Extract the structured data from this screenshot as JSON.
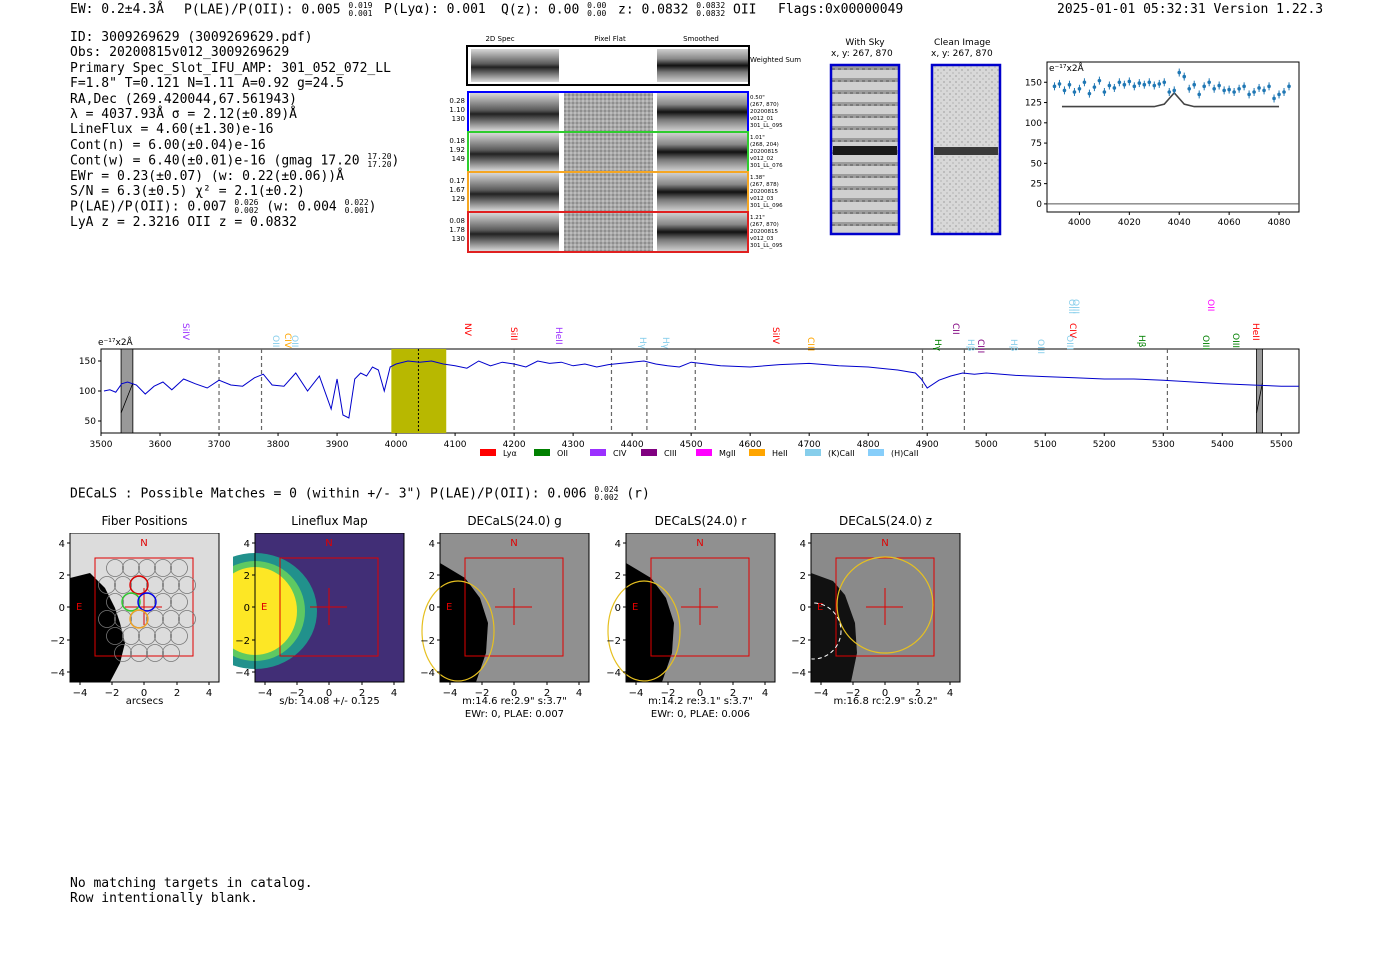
{
  "header": {
    "ew": "EW: 0.2±4.3Å",
    "plae_label": "P(LAE)/P(OII): 0.005",
    "plae_hi": "0.019",
    "plae_lo": "0.001",
    "plya": "P(Lyα): 0.001",
    "qz_label": "Q(z): 0.00",
    "qz_hi": "0.00",
    "qz_lo": "0.00",
    "z_label": "z: 0.0832",
    "z_hi": "0.0832",
    "z_lo": "0.0832",
    "z_line": "OII",
    "flags": "Flags:0x00000049",
    "timestamp": "2025-01-01 05:32:31",
    "version": "Version 1.22.3"
  },
  "info": {
    "id": "ID: 3009269629 (3009269629.pdf)",
    "obs": "Obs: 20200815v012_3009269629",
    "primary": "Primary Spec_Slot_IFU_AMP: 301_052_072_LL",
    "fiber": "F=1.8\"  T=0.121  N=1.11  A=0.92  g=24.5",
    "radec": "RA,Dec (269.420044,67.561943)",
    "lambda": "λ = 4037.93Å   σ = 2.12(±0.89)Å",
    "lineflux": "LineFlux = 4.60(±1.30)e-16",
    "contn": "Cont(n) = 6.00(±0.04)e-16",
    "contw": "Cont(w) = 6.40(±0.01)e-16 (gmag 17.20",
    "contw_hi": "17.20",
    "contw_lo": "17.20",
    "contw_close": ")",
    "ewr": "EWr = 0.23(±0.07) (w: 0.22(±0.06))Å",
    "sn": "S/N = 6.3(±0.5)  χ² = 2.1(±0.2)",
    "plae": "P(LAE)/P(OII): 0.007",
    "plae_hi": "0.026",
    "plae_lo": "0.002",
    "plae_w": " (w: 0.004",
    "plae_w_hi": "0.022",
    "plae_w_lo": "0.001",
    "plae_close": ")",
    "lyaz": "LyA z = 2.3216   OII z = 0.0832"
  },
  "cutouts": {
    "col_2d": "2D Spec",
    "col_flat": "Pixel Flat",
    "col_smooth": "Smoothed",
    "weighted": "Weighted Sum",
    "rows": [
      {
        "color": "#0000ff",
        "left": [
          "0.28",
          "1.10",
          "130"
        ],
        "right": [
          "0.50\"",
          "(267, 870)",
          "20200815",
          "v012_01",
          "301_LL_095"
        ]
      },
      {
        "color": "#2ecc2e",
        "left": [
          "0.18",
          "1.92",
          "149"
        ],
        "right": [
          "1.01\"",
          "(268, 204)",
          "20200815",
          "v012_02",
          "301_LL_076"
        ]
      },
      {
        "color": "#f5a623",
        "left": [
          "0.17",
          "1.67",
          "129"
        ],
        "right": [
          "1.38\"",
          "(267, 878)",
          "20200815",
          "v012_03",
          "301_LL_096"
        ]
      },
      {
        "color": "#e02020",
        "left": [
          "0.08",
          "1.78",
          "130"
        ],
        "right": [
          "1.21\"",
          "(267, 870)",
          "20200815",
          "v012_03",
          "301_LL_095"
        ]
      }
    ]
  },
  "sky": {
    "with_sky": "With Sky",
    "with_sky_xy": "x, y: 267, 870",
    "clean": "Clean Image",
    "clean_xy": "x, y: 267, 870"
  },
  "zoom_chart": {
    "unit": "e⁻¹⁷x2Å",
    "x_ticks": [
      "4000",
      "4020",
      "4040",
      "4060",
      "4080"
    ],
    "y_ticks": [
      "0",
      "25",
      "50",
      "75",
      "100",
      "125",
      "150"
    ]
  },
  "spectrum": {
    "unit": "e⁻¹⁷x2Å",
    "x_ticks": [
      "3500",
      "3600",
      "3700",
      "3800",
      "3900",
      "4000",
      "4100",
      "4200",
      "4300",
      "4400",
      "4500",
      "4600",
      "4700",
      "4800",
      "4900",
      "5000",
      "5100",
      "5200",
      "5300",
      "5400",
      "5500"
    ],
    "y_ticks": [
      "50",
      "100",
      "150"
    ],
    "line_labels": [
      "SiIV",
      "OII",
      "CIV",
      "OII",
      "NV",
      "SiII",
      "HeII",
      "Hγ",
      "Hγ",
      "SiIV",
      "CIII",
      "Hγ",
      "CII",
      "Hβ",
      "CIII",
      "Hβ",
      "OIII",
      "OIII",
      "OIII",
      "OIII",
      "CIV",
      "Hβ",
      "OIII",
      "OIII",
      "HeII",
      "OII"
    ],
    "legend": [
      "Lyα",
      "OII",
      "CIV",
      "CIII",
      "MgII",
      "HeII",
      "(K)CaII",
      "(H)CaII"
    ],
    "legend_colors": [
      "#ff0000",
      "#008000",
      "#9b30ff",
      "#800080",
      "#ff00ff",
      "#ffa500",
      "#87ceeb",
      "#87cefa"
    ]
  },
  "decals": {
    "line": "DECaLS : Possible Matches = 0 (within +/- 3\")  P(LAE)/P(OII): 0.006",
    "hi": "0.024",
    "lo": "0.002",
    "band": "(r)"
  },
  "panels": [
    {
      "title": "Fiber Positions",
      "cap1": "arcsecs",
      "cap2": ""
    },
    {
      "title": "Lineflux Map",
      "cap1": "s/b: 14.08 +/- 0.125",
      "cap2": ""
    },
    {
      "title": "DECaLS(24.0) g",
      "cap1": "m:14.6  re:2.9\"  s:3.7\"",
      "cap2": "EWr: 0, PLAE: 0.007"
    },
    {
      "title": "DECaLS(24.0) r",
      "cap1": "m:14.2  re:3.1\"  s:3.7\"",
      "cap2": "EWr: 0, PLAE: 0.006"
    },
    {
      "title": "DECaLS(24.0) z",
      "cap1": "m:16.8 rc:2.9\"  s:0.2\"",
      "cap2": ""
    }
  ],
  "panel_axis": {
    "ticks": [
      "−4",
      "−2",
      "0",
      "2",
      "4"
    ],
    "north": "N",
    "east": "E"
  },
  "footer": {
    "line1": "No matching targets in catalog.",
    "line2": "Row intentionally blank."
  },
  "chart_data": [
    {
      "type": "scatter",
      "title": "",
      "ylabel": "e⁻¹⁷x2Å",
      "xlim": [
        3987,
        4088
      ],
      "ylim": [
        -10,
        175
      ],
      "series": [
        {
          "name": "data",
          "x": [
            3990,
            3992,
            3994,
            3996,
            3998,
            4000,
            4002,
            4004,
            4006,
            4008,
            4010,
            4012,
            4014,
            4016,
            4018,
            4020,
            4022,
            4024,
            4026,
            4028,
            4030,
            4032,
            4034,
            4036,
            4038,
            4040,
            4042,
            4044,
            4046,
            4048,
            4050,
            4052,
            4054,
            4056,
            4058,
            4060,
            4062,
            4064,
            4066,
            4068,
            4070,
            4072,
            4074,
            4076,
            4078,
            4080,
            4082,
            4084
          ],
          "y": [
            145,
            148,
            140,
            147,
            138,
            142,
            150,
            136,
            144,
            152,
            138,
            146,
            143,
            150,
            147,
            151,
            145,
            149,
            147,
            150,
            146,
            148,
            150,
            138,
            140,
            162,
            157,
            142,
            147,
            135,
            145,
            150,
            142,
            146,
            140,
            141,
            138,
            142,
            145,
            135,
            138,
            143,
            140,
            145,
            130,
            135,
            138,
            145
          ]
        },
        {
          "name": "model",
          "x": [
            3993,
            4030,
            4034,
            4036,
            4038,
            4040,
            4042,
            4046,
            4080
          ],
          "y": [
            120,
            120,
            123,
            130,
            137,
            130,
            123,
            120,
            120
          ]
        },
        {
          "name": "zero",
          "x": [
            3987,
            4088
          ],
          "y": [
            0,
            0
          ]
        }
      ]
    },
    {
      "type": "line",
      "title": "",
      "xlabel": "",
      "ylabel": "e⁻¹⁷x2Å",
      "xlim": [
        3500,
        5530
      ],
      "ylim": [
        30,
        170
      ],
      "highlight_range": [
        3992,
        4085
      ],
      "emission_line": 4037.9,
      "dashed_lines": [
        3700,
        3772,
        4200,
        4365,
        4425,
        4507,
        4892,
        4963,
        5307
      ],
      "masked_ranges": [
        [
          3534,
          3554
        ],
        [
          5458,
          5468
        ]
      ],
      "x": [
        3505,
        3515,
        3525,
        3535,
        3545,
        3560,
        3575,
        3590,
        3605,
        3620,
        3640,
        3660,
        3680,
        3700,
        3720,
        3740,
        3760,
        3775,
        3790,
        3810,
        3830,
        3850,
        3870,
        3890,
        3900,
        3910,
        3920,
        3930,
        3940,
        3950,
        3960,
        3970,
        3980,
        3990,
        4000,
        4020,
        4040,
        4060,
        4080,
        4100,
        4120,
        4140,
        4160,
        4180,
        4200,
        4220,
        4240,
        4260,
        4280,
        4300,
        4320,
        4340,
        4360,
        4380,
        4400,
        4420,
        4440,
        4460,
        4480,
        4500,
        4550,
        4600,
        4650,
        4700,
        4750,
        4800,
        4850,
        4880,
        4890,
        4900,
        4920,
        4940,
        4960,
        4980,
        5000,
        5050,
        5100,
        5150,
        5200,
        5250,
        5300,
        5350,
        5400,
        5450,
        5500,
        5530
      ],
      "y": [
        100,
        102,
        98,
        112,
        115,
        110,
        95,
        108,
        115,
        102,
        120,
        112,
        105,
        118,
        110,
        108,
        122,
        128,
        110,
        108,
        130,
        100,
        125,
        70,
        120,
        60,
        55,
        120,
        130,
        125,
        140,
        135,
        100,
        140,
        145,
        150,
        148,
        150,
        145,
        142,
        138,
        150,
        142,
        148,
        145,
        140,
        150,
        146,
        148,
        142,
        145,
        140,
        144,
        146,
        148,
        150,
        145,
        142,
        140,
        148,
        142,
        140,
        144,
        146,
        142,
        140,
        135,
        130,
        120,
        105,
        118,
        125,
        130,
        128,
        130,
        126,
        124,
        122,
        120,
        120,
        118,
        115,
        112,
        110,
        108,
        108
      ]
    }
  ]
}
